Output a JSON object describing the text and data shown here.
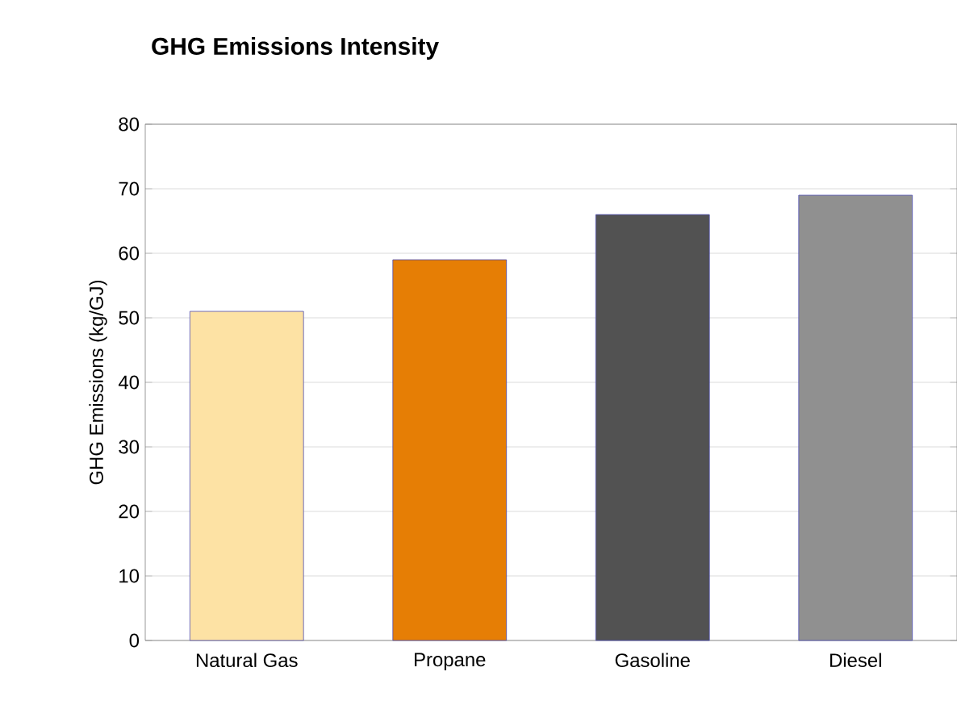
{
  "chart_data": {
    "type": "bar",
    "title": "GHG Emissions Intensity",
    "ylabel": "GHG Emissions (kg/GJ)",
    "categories": [
      "Natural Gas",
      "Propane",
      "Gasoline",
      "Diesel"
    ],
    "values": [
      51,
      59,
      66,
      69
    ],
    "colors": [
      "#fde2a4",
      "#e67e05",
      "#525252",
      "#909090"
    ],
    "ylim": [
      0,
      80
    ],
    "yticks": [
      0,
      10,
      20,
      30,
      40,
      50,
      60,
      70,
      80
    ],
    "grid": "y"
  }
}
